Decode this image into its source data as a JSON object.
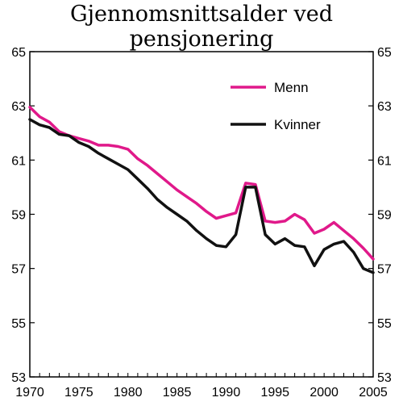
{
  "chart_data": {
    "type": "line",
    "title": "Gjennomsnittsalder ved pensjonering",
    "xlabel": "",
    "ylabel": "",
    "xlim": [
      1970,
      2005
    ],
    "ylim": [
      53,
      65
    ],
    "x_ticks": [
      "1970",
      "1975",
      "1980",
      "1985",
      "1990",
      "1995",
      "2000",
      "2005"
    ],
    "y_ticks": [
      "53",
      "55",
      "57",
      "59",
      "61",
      "63",
      "65"
    ],
    "legend_position": "top-right",
    "grid": false,
    "x": [
      1970,
      1971,
      1972,
      1973,
      1974,
      1975,
      1976,
      1977,
      1978,
      1979,
      1980,
      1981,
      1982,
      1983,
      1984,
      1985,
      1986,
      1987,
      1988,
      1989,
      1990,
      1991,
      1992,
      1993,
      1994,
      1995,
      1996,
      1997,
      1998,
      1999,
      2000,
      2001,
      2002,
      2003,
      2004,
      2005
    ],
    "series": [
      {
        "name": "Menn",
        "color": "#e0198a",
        "values": [
          62.95,
          62.6,
          62.4,
          62.05,
          61.9,
          61.8,
          61.7,
          61.55,
          61.55,
          61.5,
          61.4,
          61.05,
          60.8,
          60.5,
          60.2,
          59.9,
          59.65,
          59.4,
          59.1,
          58.85,
          58.95,
          59.05,
          60.15,
          60.1,
          58.75,
          58.7,
          58.75,
          59.0,
          58.8,
          58.3,
          58.45,
          58.7,
          58.4,
          58.1,
          57.75,
          57.35
        ]
      },
      {
        "name": "Kvinner",
        "color": "#111111",
        "values": [
          62.5,
          62.3,
          62.2,
          61.95,
          61.9,
          61.65,
          61.5,
          61.25,
          61.05,
          60.85,
          60.65,
          60.3,
          59.95,
          59.55,
          59.25,
          59.0,
          58.75,
          58.4,
          58.1,
          57.85,
          57.8,
          58.25,
          60.0,
          60.0,
          58.25,
          57.9,
          58.1,
          57.85,
          57.8,
          57.1,
          57.7,
          57.9,
          58.0,
          57.6,
          57.0,
          56.85
        ]
      }
    ]
  }
}
